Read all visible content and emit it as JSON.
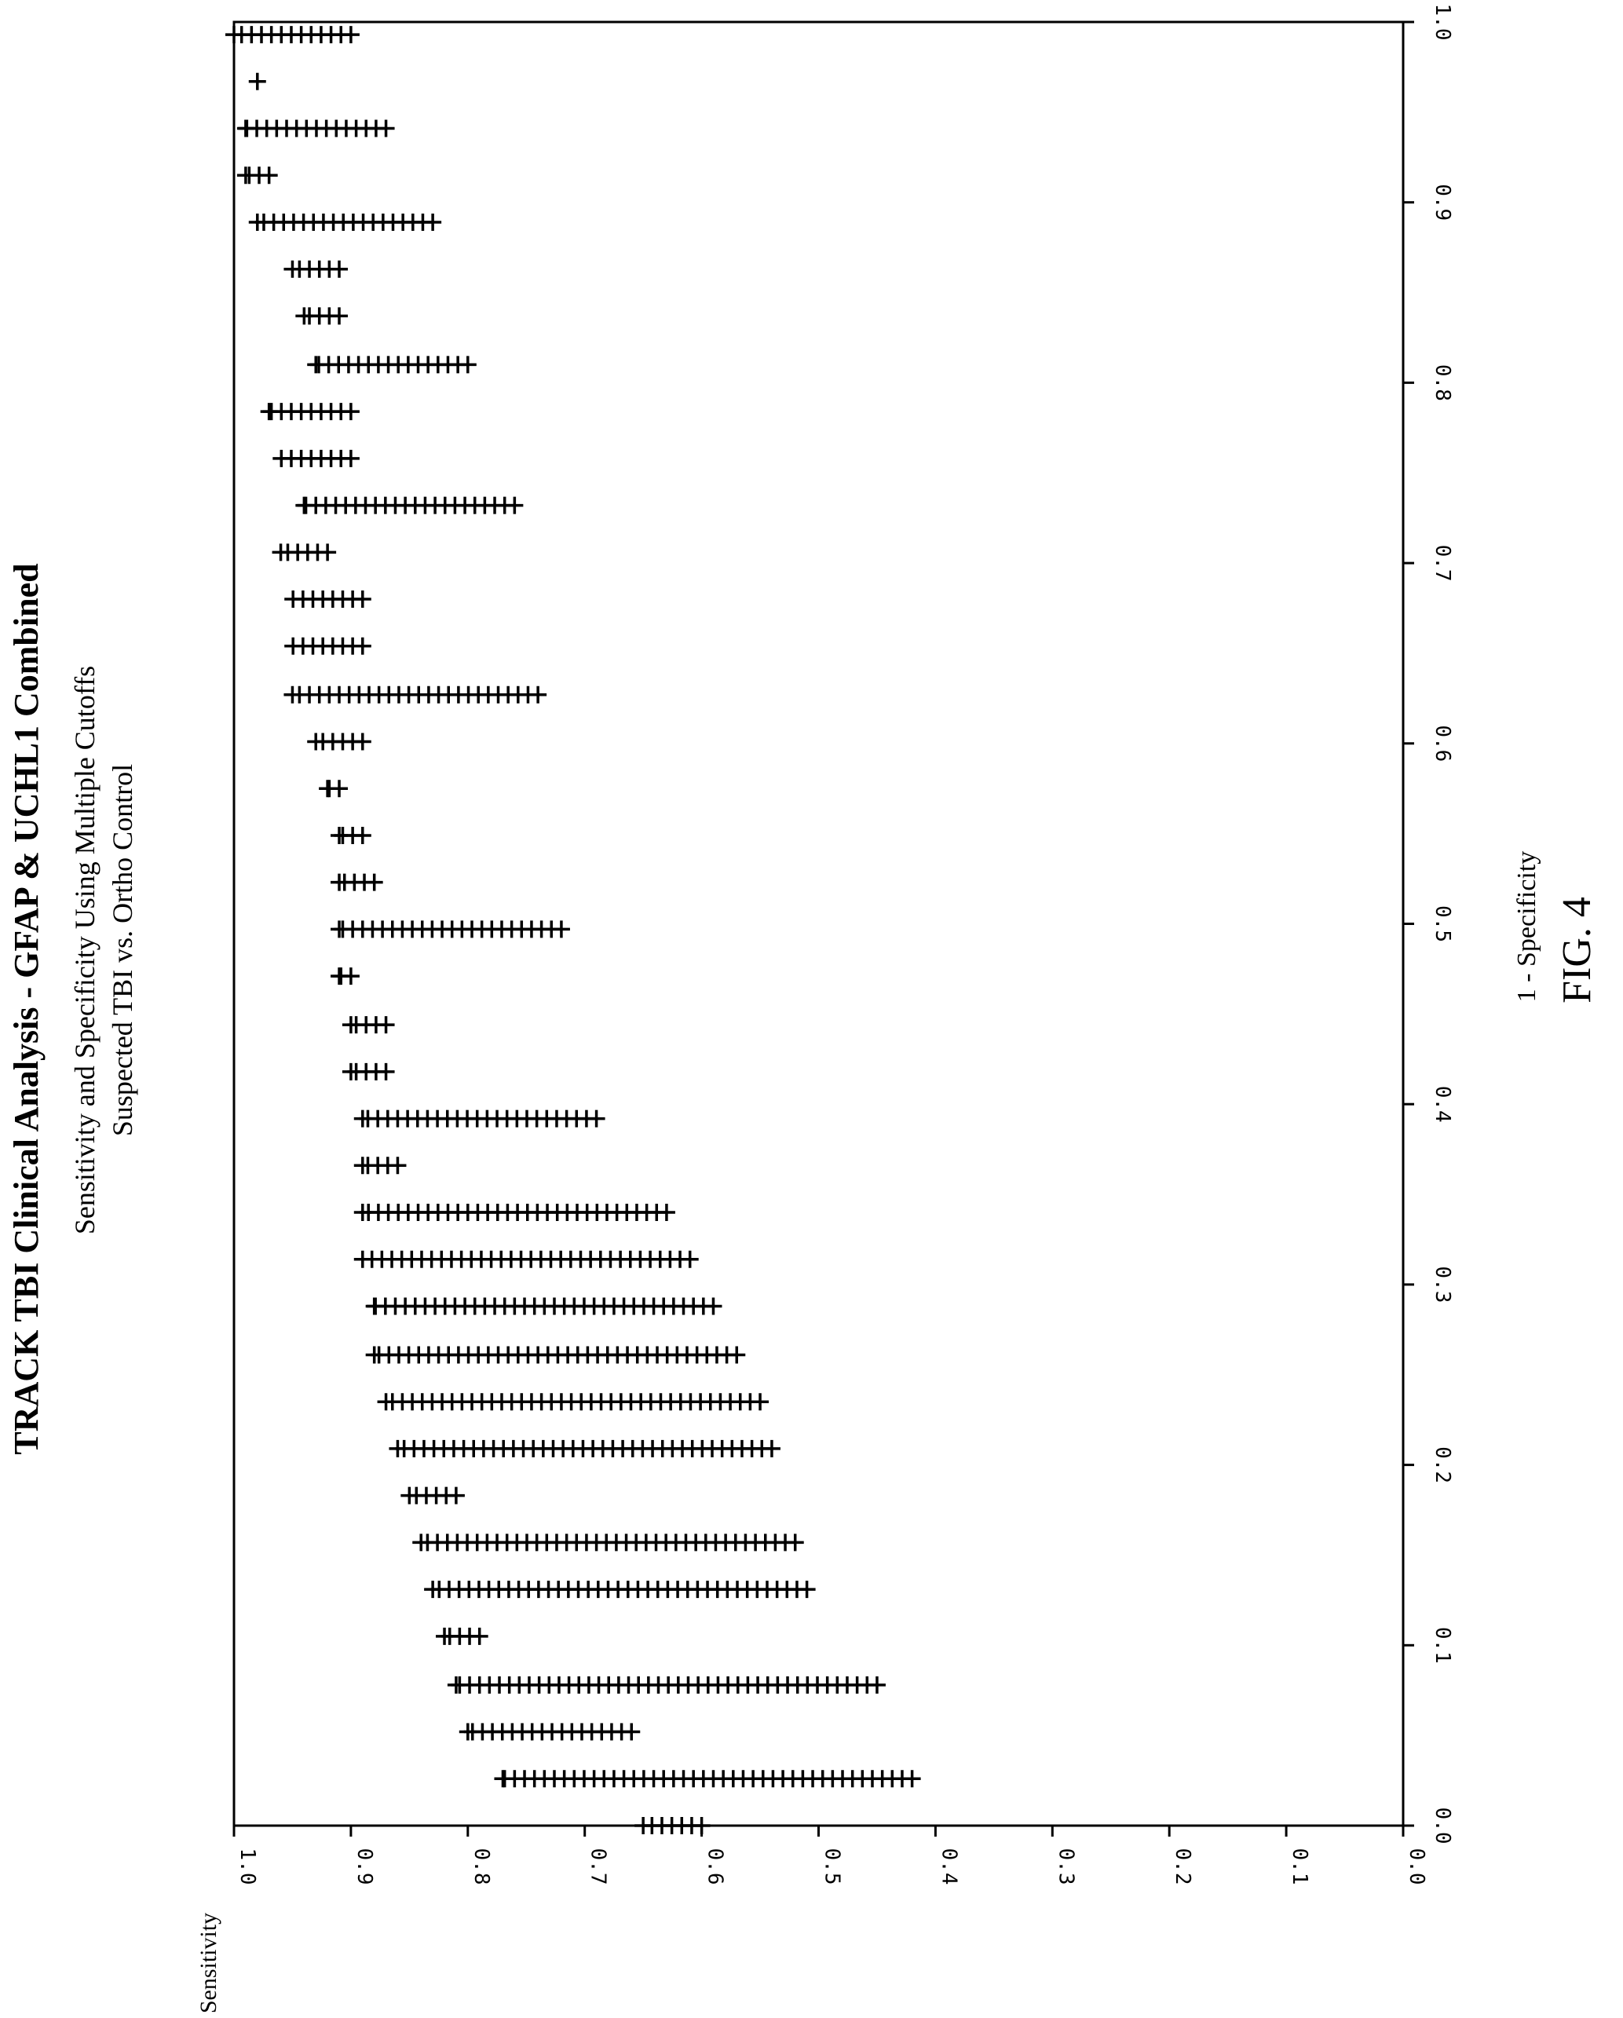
{
  "figure": {
    "label": "FIG. 4",
    "title": "TRACK TBI Clinical Analysis - GFAP & UCHL1 Combined",
    "subtitle1": "Sensitivity and Specificity Using Multiple Cutoffs",
    "subtitle2": "Suspected TBI vs. Ortho Control"
  },
  "chart_data": {
    "type": "scatter",
    "title": "TRACK TBI Clinical Analysis - GFAP & UCHL1 Combined",
    "subtitle": "Sensitivity and Specificity Using Multiple Cutoffs\nSuspected TBI vs. Ortho Control",
    "xlabel": "1 - Specificity",
    "ylabel": "Sensitivity",
    "xlim": [
      0.0,
      1.0
    ],
    "ylim": [
      0.0,
      1.0
    ],
    "x_ticks": [
      "0.0",
      "0.1",
      "0.2",
      "0.3",
      "0.4",
      "0.5",
      "0.6",
      "0.7",
      "0.8",
      "0.9",
      "1.0"
    ],
    "y_ticks": [
      "0.0",
      "0.1",
      "0.2",
      "0.3",
      "0.4",
      "0.5",
      "0.6",
      "0.7",
      "0.8",
      "0.9",
      "1.0"
    ],
    "marker": "+",
    "grid": false,
    "rows": [
      {
        "x": 0.0,
        "sens_min": 0.6,
        "sens_max": 0.65
      },
      {
        "x": 0.026,
        "sens_min": 0.42,
        "sens_max": 0.77
      },
      {
        "x": 0.052,
        "sens_min": 0.66,
        "sens_max": 0.8
      },
      {
        "x": 0.078,
        "sens_min": 0.45,
        "sens_max": 0.81
      },
      {
        "x": 0.105,
        "sens_min": 0.79,
        "sens_max": 0.82
      },
      {
        "x": 0.131,
        "sens_min": 0.51,
        "sens_max": 0.83
      },
      {
        "x": 0.157,
        "sens_min": 0.52,
        "sens_max": 0.84
      },
      {
        "x": 0.183,
        "sens_min": 0.81,
        "sens_max": 0.85
      },
      {
        "x": 0.209,
        "sens_min": 0.54,
        "sens_max": 0.86
      },
      {
        "x": 0.235,
        "sens_min": 0.55,
        "sens_max": 0.87
      },
      {
        "x": 0.261,
        "sens_min": 0.57,
        "sens_max": 0.88
      },
      {
        "x": 0.288,
        "sens_min": 0.59,
        "sens_max": 0.88
      },
      {
        "x": 0.314,
        "sens_min": 0.61,
        "sens_max": 0.89
      },
      {
        "x": 0.34,
        "sens_min": 0.63,
        "sens_max": 0.89
      },
      {
        "x": 0.366,
        "sens_min": 0.86,
        "sens_max": 0.89
      },
      {
        "x": 0.392,
        "sens_min": 0.69,
        "sens_max": 0.89
      },
      {
        "x": 0.418,
        "sens_min": 0.87,
        "sens_max": 0.9
      },
      {
        "x": 0.444,
        "sens_min": 0.87,
        "sens_max": 0.9
      },
      {
        "x": 0.471,
        "sens_min": 0.9,
        "sens_max": 0.91
      },
      {
        "x": 0.497,
        "sens_min": 0.72,
        "sens_max": 0.91
      },
      {
        "x": 0.523,
        "sens_min": 0.88,
        "sens_max": 0.91
      },
      {
        "x": 0.549,
        "sens_min": 0.89,
        "sens_max": 0.91
      },
      {
        "x": 0.575,
        "sens_min": 0.91,
        "sens_max": 0.92
      },
      {
        "x": 0.601,
        "sens_min": 0.89,
        "sens_max": 0.93
      },
      {
        "x": 0.627,
        "sens_min": 0.74,
        "sens_max": 0.95
      },
      {
        "x": 0.654,
        "sens_min": 0.89,
        "sens_max": 0.95
      },
      {
        "x": 0.68,
        "sens_min": 0.89,
        "sens_max": 0.95
      },
      {
        "x": 0.706,
        "sens_min": 0.92,
        "sens_max": 0.96
      },
      {
        "x": 0.732,
        "sens_min": 0.76,
        "sens_max": 0.94
      },
      {
        "x": 0.758,
        "sens_min": 0.9,
        "sens_max": 0.96
      },
      {
        "x": 0.784,
        "sens_min": 0.9,
        "sens_max": 0.97
      },
      {
        "x": 0.81,
        "sens_min": 0.8,
        "sens_max": 0.93
      },
      {
        "x": 0.837,
        "sens_min": 0.91,
        "sens_max": 0.94
      },
      {
        "x": 0.863,
        "sens_min": 0.91,
        "sens_max": 0.95
      },
      {
        "x": 0.889,
        "sens_min": 0.83,
        "sens_max": 0.98
      },
      {
        "x": 0.915,
        "sens_min": 0.97,
        "sens_max": 0.99
      },
      {
        "x": 0.941,
        "sens_min": 0.87,
        "sens_max": 0.99
      },
      {
        "x": 0.967,
        "sens_min": 0.98,
        "sens_max": 0.98
      },
      {
        "x": 0.993,
        "sens_min": 0.9,
        "sens_max": 1.0
      }
    ]
  }
}
